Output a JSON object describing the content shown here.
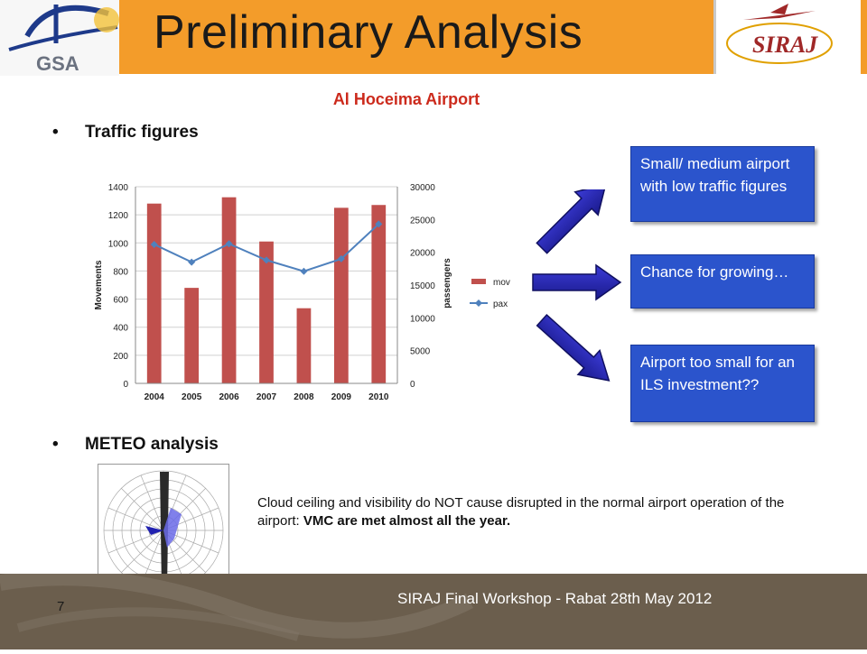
{
  "header": {
    "title": "Preliminary Analysis",
    "left_logo_text": "GSA",
    "right_logo_text": "SIRAJ"
  },
  "subtitle": "Al Hoceima Airport",
  "bullets": {
    "traffic": "Traffic figures",
    "meteo": "METEO analysis"
  },
  "callouts": [
    "Small/ medium airport with low traffic figures",
    "Chance for growing…",
    "Airport too small for an ILS investment??"
  ],
  "meteo_text": {
    "normal": "Cloud ceiling and visibility do NOT cause disrupted in the normal airport operation of the airport: ",
    "bold": "VMC are met almost all the year."
  },
  "footer": {
    "text": "SIRAJ  Final Workshop -  Rabat 28th May 2012",
    "page_number": "7"
  },
  "colors": {
    "header_bar": "#f39c2a",
    "bar": "#c0504d",
    "line": "#4f81bd",
    "callout": "#2b54cc",
    "subtitle": "#cc2a1c",
    "footer": "#6b5e4d"
  },
  "chart_data": {
    "type": "bar",
    "categories": [
      "2004",
      "2005",
      "2006",
      "2007",
      "2008",
      "2009",
      "2010"
    ],
    "series": [
      {
        "name": "mov",
        "type": "bar",
        "axis": "left",
        "values": [
          1280,
          680,
          1325,
          1010,
          535,
          1250,
          1270
        ]
      },
      {
        "name": "pax",
        "type": "line",
        "axis": "right",
        "values": [
          21200,
          18500,
          21300,
          18800,
          17100,
          19000,
          24300
        ]
      }
    ],
    "ylabel": "Movements",
    "y2label": "passengers",
    "ylim": [
      0,
      1400
    ],
    "y2lim": [
      0,
      30000
    ],
    "yticks": [
      "0",
      "200",
      "400",
      "600",
      "800",
      "1000",
      "1200",
      "1400"
    ],
    "y2ticks": [
      "0",
      "5000",
      "10000",
      "15000",
      "20000",
      "25000",
      "30000"
    ],
    "grid": true,
    "legend": "right"
  }
}
